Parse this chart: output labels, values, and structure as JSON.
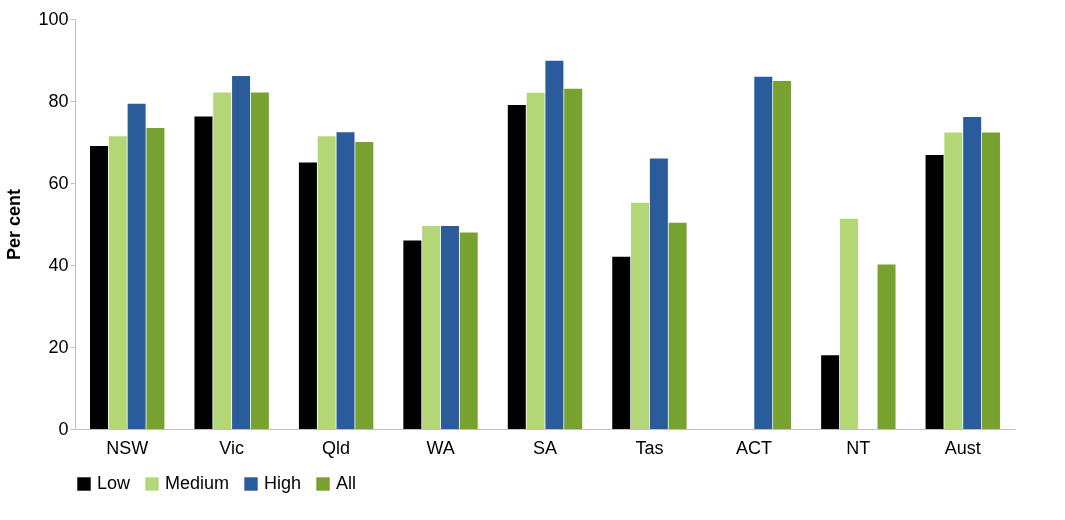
{
  "chart_data": {
    "type": "bar",
    "ylabel": "Per cent",
    "categories": [
      "NSW",
      "Vic",
      "Qld",
      "WA",
      "SA",
      "Tas",
      "ACT",
      "NT",
      "Aust"
    ],
    "series": [
      {
        "name": "Low",
        "color": "#000000",
        "values": [
          69.0,
          76.2,
          65.0,
          46.0,
          79.0,
          42.0,
          null,
          18.0,
          66.8
        ]
      },
      {
        "name": "Medium",
        "color": "#b3d677",
        "values": [
          71.4,
          82.1,
          71.4,
          49.5,
          82.0,
          55.2,
          null,
          51.3,
          72.3
        ]
      },
      {
        "name": "High",
        "color": "#2a5b9b",
        "values": [
          79.3,
          86.1,
          72.4,
          49.5,
          89.8,
          66.0,
          85.9,
          null,
          76.1
        ]
      },
      {
        "name": "All",
        "color": "#78a22f",
        "values": [
          73.4,
          82.1,
          70.0,
          47.9,
          83.0,
          50.3,
          84.9,
          40.1,
          72.3
        ]
      }
    ],
    "ylim": [
      0,
      100
    ],
    "yticks": [
      0,
      20,
      40,
      60,
      80,
      100
    ],
    "grid": false,
    "legend": "bottom"
  }
}
